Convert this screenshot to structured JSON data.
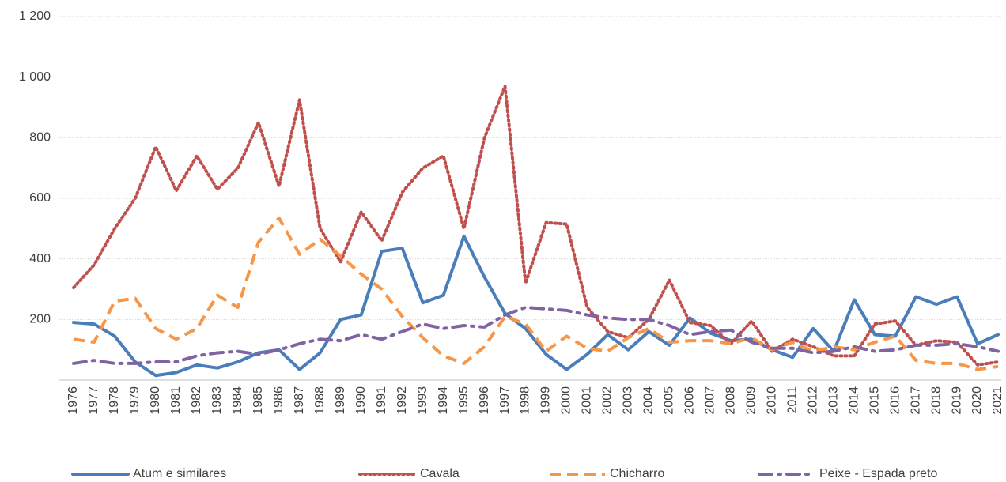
{
  "chart_data": {
    "type": "line",
    "categories": [
      "1976",
      "1977",
      "1978",
      "1979",
      "1980",
      "1981",
      "1982",
      "1983",
      "1984",
      "1985",
      "1986",
      "1987",
      "1988",
      "1989",
      "1990",
      "1991",
      "1992",
      "1993",
      "1994",
      "1995",
      "1996",
      "1997",
      "1998",
      "1999",
      "2000",
      "2001",
      "2002",
      "2003",
      "2004",
      "2005",
      "2006",
      "2007",
      "2008",
      "2009",
      "2010",
      "2011",
      "2012",
      "2013",
      "2014",
      "2015",
      "2016",
      "2017",
      "2018",
      "2019",
      "2020",
      "2021"
    ],
    "series": [
      {
        "name": "Atum e similares",
        "color": "#4a7ebb",
        "style": "solid",
        "values": [
          190,
          185,
          145,
          60,
          15,
          25,
          50,
          40,
          60,
          90,
          100,
          35,
          90,
          200,
          215,
          425,
          435,
          255,
          280,
          475,
          340,
          220,
          170,
          85,
          35,
          85,
          150,
          100,
          160,
          115,
          205,
          155,
          130,
          135,
          100,
          75,
          170,
          95,
          265,
          150,
          145,
          275,
          250,
          275,
          120,
          150
        ]
      },
      {
        "name": "Cavala",
        "color": "#c0504d",
        "style": "dotted",
        "values": [
          305,
          380,
          500,
          600,
          770,
          625,
          740,
          630,
          700,
          850,
          640,
          925,
          500,
          390,
          555,
          460,
          620,
          700,
          740,
          500,
          800,
          970,
          320,
          520,
          515,
          240,
          160,
          140,
          200,
          330,
          190,
          180,
          120,
          195,
          95,
          135,
          110,
          80,
          80,
          185,
          195,
          115,
          130,
          125,
          50,
          60
        ]
      },
      {
        "name": "Chicharro",
        "color": "#f79646",
        "style": "dashed",
        "values": [
          135,
          125,
          260,
          270,
          170,
          135,
          170,
          280,
          240,
          455,
          535,
          415,
          465,
          410,
          350,
          300,
          210,
          140,
          80,
          55,
          110,
          210,
          185,
          95,
          145,
          105,
          95,
          140,
          170,
          125,
          130,
          130,
          120,
          140,
          100,
          125,
          95,
          110,
          100,
          125,
          145,
          65,
          55,
          55,
          35,
          45
        ]
      },
      {
        "name": "Peixe - Espada preto",
        "color": "#8064a2",
        "style": "dashdot",
        "values": [
          55,
          65,
          55,
          55,
          60,
          60,
          80,
          90,
          95,
          85,
          100,
          120,
          135,
          130,
          150,
          135,
          160,
          185,
          170,
          180,
          175,
          215,
          240,
          235,
          230,
          215,
          205,
          200,
          200,
          180,
          150,
          160,
          165,
          125,
          105,
          105,
          90,
          95,
          110,
          95,
          100,
          115,
          115,
          120,
          110,
          95
        ]
      }
    ],
    "ylim": [
      0,
      1200
    ],
    "yticks": [
      200,
      400,
      600,
      800,
      {
        "value": 1000,
        "label": "1 000"
      },
      {
        "value": 1200,
        "label": "1 200"
      }
    ],
    "grid": true,
    "legend": "bottom"
  }
}
